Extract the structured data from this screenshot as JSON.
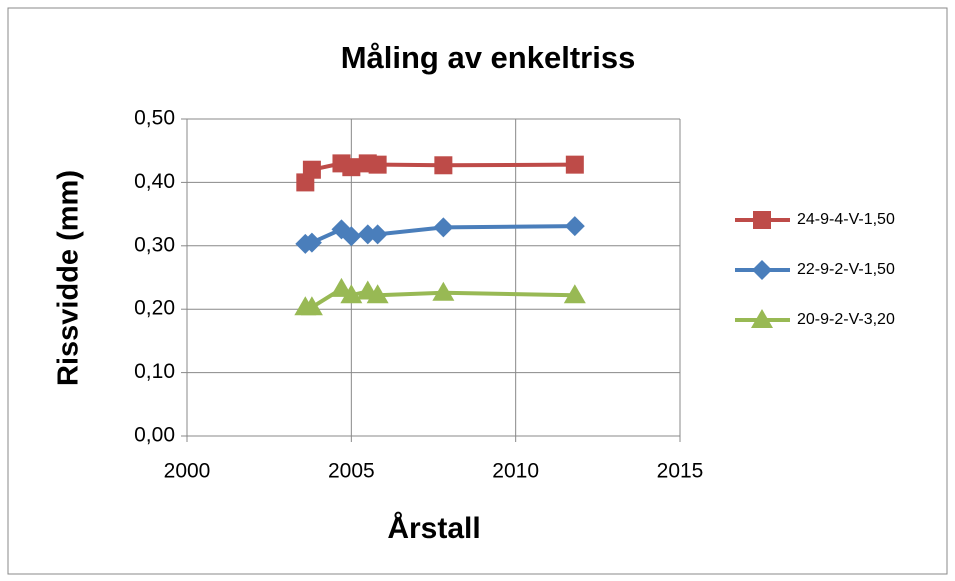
{
  "chart_data": {
    "type": "line",
    "title": "Måling av enkeltriss",
    "x_label": "Årstall",
    "y_label": "Rissvidde  (mm)",
    "x": [
      2003.6,
      2003.8,
      2004.7,
      2005.0,
      2005.5,
      2005.8,
      2007.8,
      2011.8
    ],
    "series": [
      {
        "name": "24-9-4-V-1,50",
        "color": "#be4b48",
        "marker": "square",
        "values": [
          0.4,
          0.42,
          0.43,
          0.424,
          0.43,
          0.428,
          0.427,
          0.428
        ]
      },
      {
        "name": "22-9-2-V-1,50",
        "color": "#4a7ebb",
        "marker": "diamond",
        "values": [
          0.303,
          0.305,
          0.326,
          0.315,
          0.318,
          0.318,
          0.329,
          0.331
        ]
      },
      {
        "name": "20-9-2-V-3,20",
        "color": "#98b954",
        "marker": "triangle",
        "values": [
          0.203,
          0.203,
          0.232,
          0.222,
          0.228,
          0.222,
          0.226,
          0.222
        ]
      }
    ],
    "xlim": [
      2000,
      2015
    ],
    "xticks": [
      2000,
      2005,
      2010,
      2015
    ],
    "ylim": [
      0,
      0.5
    ],
    "yticks": [
      {
        "value": 0,
        "label": "0,00"
      },
      {
        "value": 0.1,
        "label": "0,10"
      },
      {
        "value": 0.2,
        "label": "0,20"
      },
      {
        "value": 0.3,
        "label": "0,30"
      },
      {
        "value": 0.4,
        "label": "0,40"
      },
      {
        "value": 0.5,
        "label": "0,50"
      }
    ],
    "grid": true,
    "legend": "right"
  }
}
